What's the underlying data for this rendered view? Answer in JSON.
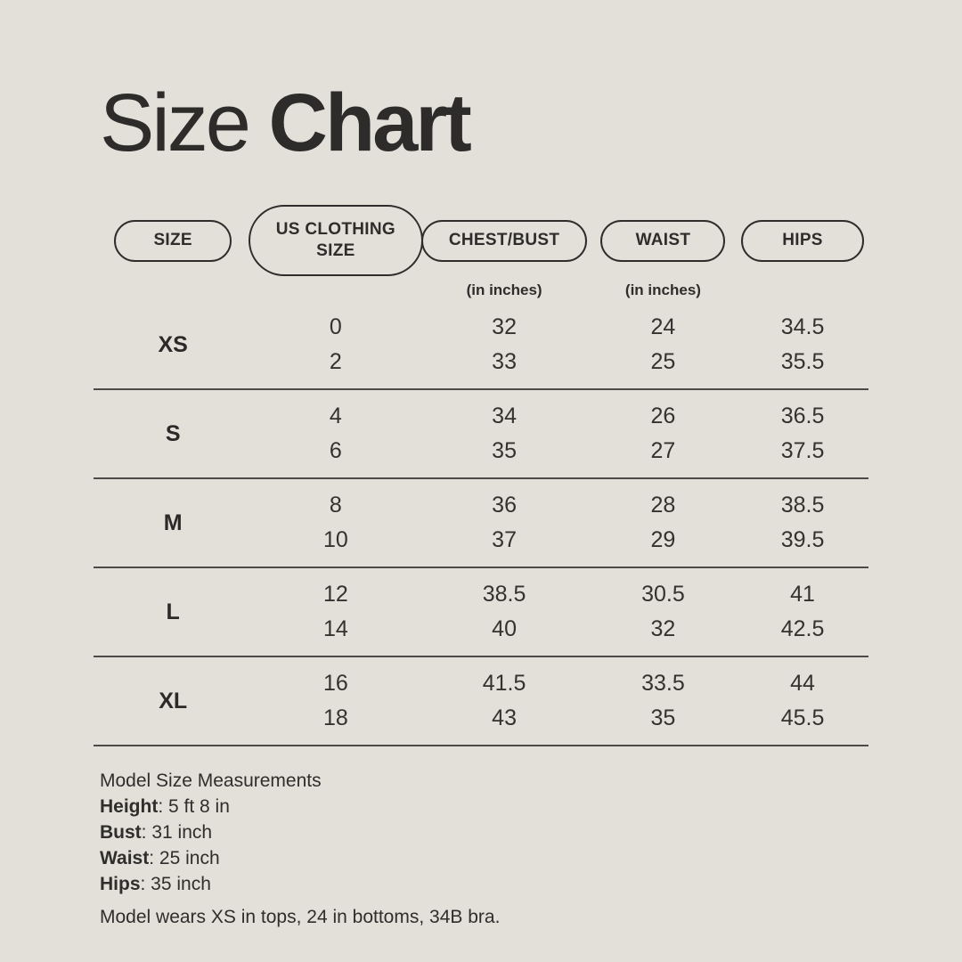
{
  "colors": {
    "background": "#e2e0d9",
    "text": "#2e2d2b",
    "divider": "#4b4a46",
    "pill_border": "#2e2d2b"
  },
  "title": {
    "regular": "Size",
    "bold": "Chart"
  },
  "table": {
    "headers": [
      {
        "label": "SIZE",
        "sub": ""
      },
      {
        "label": "US CLOTHING SIZE",
        "sub": ""
      },
      {
        "label": "CHEST/BUST",
        "sub": "(in inches)"
      },
      {
        "label": "WAIST",
        "sub": "(in inches)"
      },
      {
        "label": "HIPS",
        "sub": ""
      }
    ],
    "rows": [
      {
        "size": "XS",
        "us": [
          "0",
          "2"
        ],
        "chest": [
          "32",
          "33"
        ],
        "waist": [
          "24",
          "25"
        ],
        "hips": [
          "34.5",
          "35.5"
        ]
      },
      {
        "size": "S",
        "us": [
          "4",
          "6"
        ],
        "chest": [
          "34",
          "35"
        ],
        "waist": [
          "26",
          "27"
        ],
        "hips": [
          "36.5",
          "37.5"
        ]
      },
      {
        "size": "M",
        "us": [
          "8",
          "10"
        ],
        "chest": [
          "36",
          "37"
        ],
        "waist": [
          "28",
          "29"
        ],
        "hips": [
          "38.5",
          "39.5"
        ]
      },
      {
        "size": "L",
        "us": [
          "12",
          "14"
        ],
        "chest": [
          "38.5",
          "40"
        ],
        "waist": [
          "30.5",
          "32"
        ],
        "hips": [
          "41",
          "42.5"
        ]
      },
      {
        "size": "XL",
        "us": [
          "16",
          "18"
        ],
        "chest": [
          "41.5",
          "43"
        ],
        "waist": [
          "33.5",
          "35"
        ],
        "hips": [
          "44",
          "45.5"
        ]
      }
    ]
  },
  "footer": {
    "heading": "Model Size Measurements",
    "stats": [
      {
        "label": "Height",
        "value": ": 5 ft 8 in"
      },
      {
        "label": "Bust",
        "value": ": 31 inch"
      },
      {
        "label": "Waist",
        "value": ": 25 inch"
      },
      {
        "label": "Hips",
        "value": ": 35 inch"
      }
    ],
    "wears": "Model wears XS in tops, 24 in bottoms, 34B bra."
  }
}
